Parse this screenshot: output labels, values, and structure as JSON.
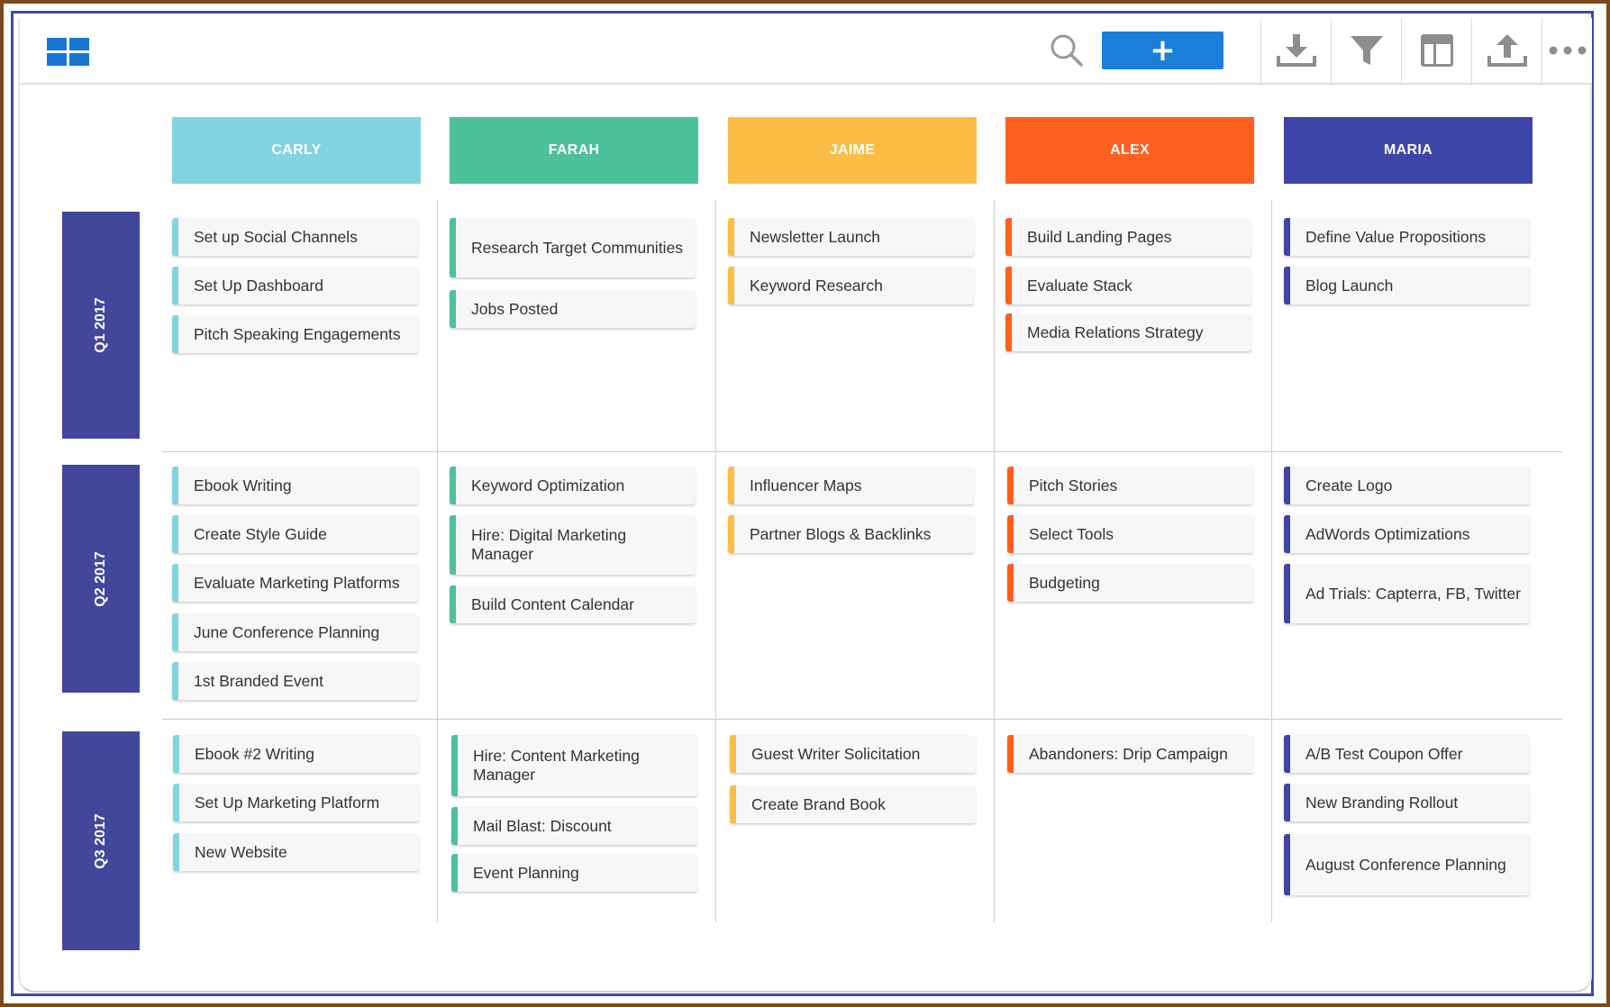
{
  "toolbar": {
    "icons": [
      "grid-view-icon",
      "search-icon",
      "plus-icon",
      "download-icon",
      "filter-icon",
      "layout-icon",
      "upload-icon",
      "more-icon"
    ],
    "add_label": "+"
  },
  "colors": {
    "carly": "#82d4e3",
    "farah": "#4cc19b",
    "jaime": "#fbbd46",
    "alex": "#ff5f1f",
    "maria": "#3e45a8",
    "row_label": "#43479b",
    "add_button": "#1a7fd9"
  },
  "columns": [
    "CARLY",
    "FARAH",
    "JAIME",
    "ALEX",
    "MARIA"
  ],
  "rows": [
    "Q1 2017",
    "Q2 2017",
    "Q3 2017"
  ],
  "cards": {
    "q1": {
      "carly": [
        "Set up Social Channels",
        "Set Up Dashboard",
        "Pitch Speaking Engagements"
      ],
      "farah": [
        "Research Target Communities",
        "Jobs Posted"
      ],
      "jaime": [
        "Newsletter Launch",
        "Keyword Research"
      ],
      "alex": [
        "Build Landing Pages",
        "Evaluate Stack",
        "Media Relations Strategy"
      ],
      "maria": [
        "Define Value Propositions",
        "Blog Launch"
      ]
    },
    "q2": {
      "carly": [
        "Ebook Writing",
        "Create Style Guide",
        "Evaluate Marketing Platforms",
        "June Conference Planning",
        "1st Branded Event"
      ],
      "farah": [
        "Keyword Optimization",
        "Hire: Digital Marketing Manager",
        "Build Content Calendar"
      ],
      "jaime": [
        "Influencer Maps",
        "Partner Blogs & Backlinks"
      ],
      "alex": [
        "Pitch Stories",
        "Select Tools",
        "Budgeting"
      ],
      "maria": [
        "Create Logo",
        "AdWords Optimizations",
        "Ad Trials: Capterra, FB, Twitter"
      ]
    },
    "q3": {
      "carly": [
        "Ebook #2 Writing",
        "Set Up Marketing Platform",
        "New Website"
      ],
      "farah": [
        "Hire: Content Marketing Manager",
        "Mail Blast: Discount",
        "Event Planning"
      ],
      "jaime": [
        "Guest Writer Solicitation",
        "Create Brand Book"
      ],
      "alex": [
        "Abandoners: Drip Campaign"
      ],
      "maria": [
        "A/B Test Coupon Offer",
        "New Branding Rollout",
        "August Conference Planning"
      ]
    }
  }
}
